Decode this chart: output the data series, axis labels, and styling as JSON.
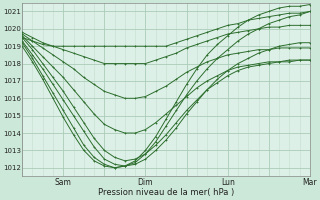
{
  "title": "",
  "xlabel": "Pression niveau de la mer( hPa )",
  "ylabel": "",
  "bg_color": "#cce8d8",
  "plot_bg_color": "#ddf0e8",
  "grid_color_major": "#aaccb8",
  "grid_color_minor": "#c4dece",
  "line_color": "#2d6e2d",
  "marker_color": "#2d6e2d",
  "ylim": [
    1011.5,
    1021.5
  ],
  "yticks": [
    1012,
    1013,
    1014,
    1015,
    1016,
    1017,
    1018,
    1019,
    1020,
    1021
  ],
  "total_hours": 168,
  "series": [
    {
      "x": [
        0,
        6,
        12,
        18,
        24,
        30,
        36,
        42,
        48,
        54,
        60,
        66,
        72,
        78,
        84,
        90,
        96,
        102,
        108,
        114,
        120,
        126,
        132,
        138,
        144,
        150,
        156,
        162,
        168
      ],
      "y": [
        1019.5,
        1019.3,
        1019.1,
        1019.0,
        1019.0,
        1019.0,
        1019.0,
        1019.0,
        1019.0,
        1019.0,
        1019.0,
        1019.0,
        1019.0,
        1019.0,
        1019.0,
        1019.2,
        1019.4,
        1019.6,
        1019.8,
        1020.0,
        1020.2,
        1020.3,
        1020.5,
        1020.6,
        1020.7,
        1020.8,
        1020.9,
        1020.9,
        1021.0
      ]
    },
    {
      "x": [
        0,
        6,
        12,
        18,
        24,
        30,
        36,
        42,
        48,
        54,
        60,
        66,
        72,
        78,
        84,
        90,
        96,
        102,
        108,
        114,
        120,
        126,
        132,
        138,
        144,
        150,
        156,
        162,
        168
      ],
      "y": [
        1019.8,
        1019.5,
        1019.2,
        1019.0,
        1018.8,
        1018.6,
        1018.4,
        1018.2,
        1018.0,
        1018.0,
        1018.0,
        1018.0,
        1018.0,
        1018.2,
        1018.4,
        1018.6,
        1018.9,
        1019.1,
        1019.3,
        1019.5,
        1019.7,
        1019.8,
        1019.9,
        1020.0,
        1020.1,
        1020.1,
        1020.2,
        1020.2,
        1020.2
      ]
    },
    {
      "x": [
        0,
        6,
        12,
        18,
        24,
        30,
        36,
        42,
        48,
        54,
        60,
        66,
        72,
        78,
        84,
        90,
        96,
        102,
        108,
        114,
        120,
        126,
        132,
        138,
        144,
        150,
        156,
        162,
        168
      ],
      "y": [
        1019.7,
        1019.3,
        1018.9,
        1018.5,
        1018.1,
        1017.7,
        1017.2,
        1016.8,
        1016.4,
        1016.2,
        1016.0,
        1016.0,
        1016.1,
        1016.4,
        1016.7,
        1017.1,
        1017.5,
        1017.8,
        1018.1,
        1018.3,
        1018.5,
        1018.6,
        1018.7,
        1018.8,
        1018.8,
        1018.9,
        1018.9,
        1018.9,
        1018.9
      ]
    },
    {
      "x": [
        0,
        6,
        12,
        18,
        24,
        30,
        36,
        42,
        48,
        54,
        60,
        66,
        72,
        78,
        84,
        90,
        96,
        102,
        108,
        114,
        120,
        126,
        132,
        138,
        144,
        150,
        156,
        162,
        168
      ],
      "y": [
        1019.6,
        1019.0,
        1018.4,
        1017.8,
        1017.2,
        1016.5,
        1015.8,
        1015.1,
        1014.5,
        1014.2,
        1014.0,
        1014.0,
        1014.2,
        1014.6,
        1015.1,
        1015.6,
        1016.1,
        1016.6,
        1017.0,
        1017.3,
        1017.6,
        1017.8,
        1017.9,
        1018.0,
        1018.1,
        1018.1,
        1018.2,
        1018.2,
        1018.2
      ]
    },
    {
      "x": [
        0,
        6,
        12,
        18,
        24,
        30,
        36,
        42,
        48,
        54,
        60,
        66,
        72,
        78,
        84,
        90,
        96,
        102,
        108,
        114,
        120,
        126,
        132,
        138,
        144,
        150,
        156,
        162,
        168
      ],
      "y": [
        1019.5,
        1018.8,
        1018.0,
        1017.2,
        1016.4,
        1015.5,
        1014.6,
        1013.7,
        1013.0,
        1012.6,
        1012.4,
        1012.5,
        1012.8,
        1013.3,
        1013.9,
        1014.6,
        1015.3,
        1015.9,
        1016.5,
        1016.9,
        1017.3,
        1017.6,
        1017.8,
        1017.9,
        1018.0,
        1018.1,
        1018.1,
        1018.2,
        1018.2
      ]
    },
    {
      "x": [
        0,
        6,
        12,
        18,
        24,
        30,
        36,
        42,
        48,
        54,
        60,
        66,
        72,
        78,
        84,
        90,
        96,
        102,
        108,
        114,
        120,
        126,
        132,
        138,
        144,
        150,
        156,
        162,
        168
      ],
      "y": [
        1019.3,
        1018.5,
        1017.7,
        1016.8,
        1015.9,
        1015.0,
        1014.1,
        1013.2,
        1012.5,
        1012.2,
        1012.1,
        1012.2,
        1012.5,
        1013.0,
        1013.6,
        1014.3,
        1015.1,
        1015.8,
        1016.5,
        1017.1,
        1017.6,
        1018.0,
        1018.3,
        1018.6,
        1018.8,
        1019.0,
        1019.1,
        1019.2,
        1019.2
      ]
    },
    {
      "x": [
        0,
        6,
        12,
        18,
        24,
        30,
        36,
        42,
        48,
        54,
        60,
        66,
        72,
        78,
        84,
        90,
        96,
        102,
        108,
        114,
        120,
        126,
        132,
        138,
        144,
        150,
        156,
        162,
        168
      ],
      "y": [
        1019.2,
        1018.3,
        1017.3,
        1016.3,
        1015.3,
        1014.3,
        1013.3,
        1012.6,
        1012.2,
        1012.0,
        1012.1,
        1012.3,
        1012.8,
        1013.5,
        1014.4,
        1015.3,
        1016.2,
        1017.0,
        1017.7,
        1018.3,
        1018.8,
        1019.3,
        1019.7,
        1020.0,
        1020.3,
        1020.5,
        1020.7,
        1020.8,
        1021.0
      ]
    },
    {
      "x": [
        0,
        6,
        12,
        18,
        24,
        30,
        36,
        42,
        48,
        54,
        60,
        66,
        72,
        78,
        84,
        90,
        96,
        102,
        108,
        114,
        120,
        126,
        132,
        138,
        144,
        150,
        156,
        162,
        168
      ],
      "y": [
        1019.0,
        1018.1,
        1017.1,
        1016.0,
        1014.9,
        1013.9,
        1013.0,
        1012.4,
        1012.1,
        1012.0,
        1012.1,
        1012.4,
        1013.0,
        1013.8,
        1014.8,
        1015.8,
        1016.8,
        1017.7,
        1018.5,
        1019.1,
        1019.6,
        1020.1,
        1020.5,
        1020.8,
        1021.0,
        1021.2,
        1021.3,
        1021.3,
        1021.4
      ]
    }
  ]
}
